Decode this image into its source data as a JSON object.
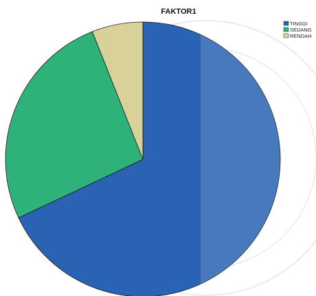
{
  "chart_data": {
    "type": "pie",
    "title": "FAKTOR1",
    "slices": [
      {
        "label": "TINGGI",
        "value": 68,
        "color": "#2a63b3"
      },
      {
        "label": "SEDANG",
        "value": 26,
        "color": "#2fb27a"
      },
      {
        "label": "RENDAH",
        "value": 6,
        "color": "#d8d19a"
      }
    ],
    "legend_position": "top-right"
  }
}
